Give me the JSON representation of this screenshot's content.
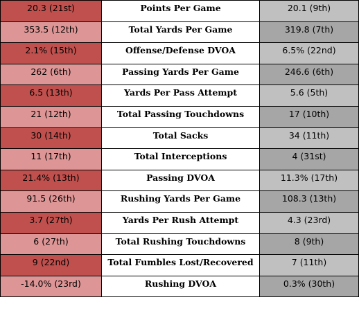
{
  "colors": {
    "left_dark": "#c0504d",
    "left_light": "#dd9595",
    "right_light": "#c0c0c0",
    "right_dark": "#a6a6a6"
  },
  "rows": [
    {
      "left": "20.3 (21st)",
      "stat": "Points Per Game",
      "right": "20.1 (9th)"
    },
    {
      "left": "353.5 (12th)",
      "stat": "Total Yards Per Game",
      "right": "319.8 (7th)"
    },
    {
      "left": "2.1% (15th)",
      "stat": "Offense/Defense DVOA",
      "right": "6.5% (22nd)"
    },
    {
      "left": "262 (6th)",
      "stat": "Passing Yards Per Game",
      "right": "246.6 (6th)"
    },
    {
      "left": "6.5 (13th)",
      "stat": "Yards Per Pass Attempt",
      "right": "5.6 (5th)"
    },
    {
      "left": "21 (12th)",
      "stat": "Total Passing Touchdowns",
      "right": "17 (10th)"
    },
    {
      "left": "30 (14th)",
      "stat": "Total Sacks",
      "right": "34 (11th)"
    },
    {
      "left": "11 (17th)",
      "stat": "Total Interceptions",
      "right": "4 (31st)"
    },
    {
      "left": "21.4% (13th)",
      "stat": "Passing DVOA",
      "right": "11.3% (17th)"
    },
    {
      "left": "91.5 (26th)",
      "stat": "Rushing Yards Per Game",
      "right": "108.3 (13th)"
    },
    {
      "left": "3.7 (27th)",
      "stat": "Yards Per Rush Attempt",
      "right": "4.3 (23rd)"
    },
    {
      "left": "6 (27th)",
      "stat": "Total Rushing Touchdowns",
      "right": "8 (9th)"
    },
    {
      "left": "9 (22nd)",
      "stat": "Total Fumbles Lost/Recovered",
      "right": "7 (11th)"
    },
    {
      "left": "-14.0% (23rd)",
      "stat": "Rushing DVOA",
      "right": "0.3% (30th)"
    }
  ]
}
